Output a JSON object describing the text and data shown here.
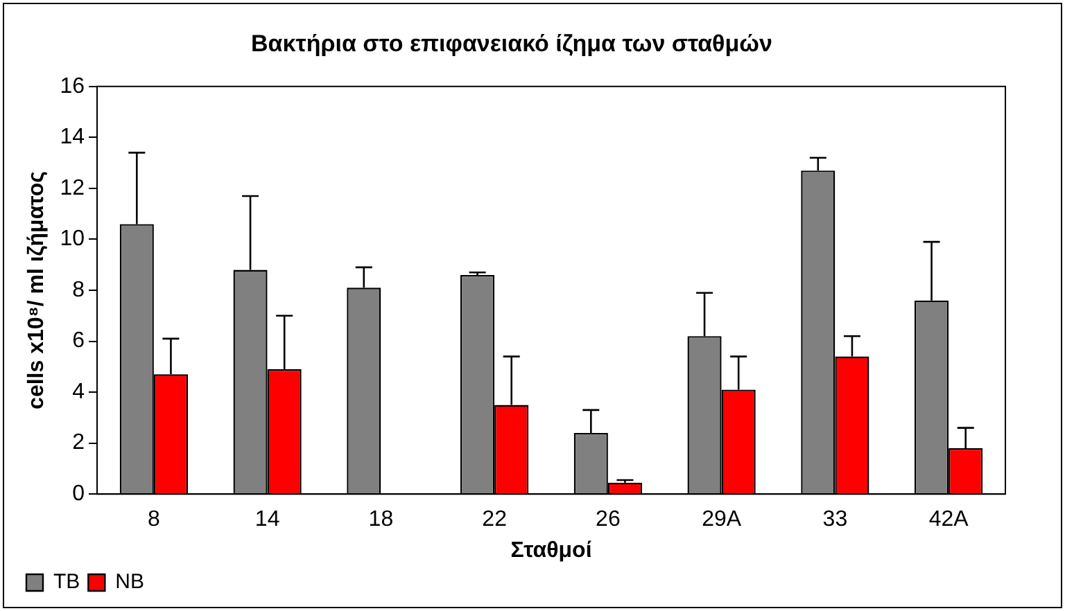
{
  "chart_data": {
    "type": "bar",
    "title": "Βακτήρια στο επιφανειακό ίζημα των σταθμών",
    "xlabel": "Σταθμοί",
    "ylabel": "cells x10⁸/ ml ιζήματος",
    "categories": [
      "8",
      "14",
      "18",
      "22",
      "26",
      "29A",
      "33",
      "42A"
    ],
    "series": [
      {
        "name": "TB",
        "color": "#808080",
        "values": [
          10.6,
          8.8,
          8.1,
          8.6,
          2.4,
          6.2,
          12.7,
          7.6
        ],
        "errors": [
          [
            10.6,
            13.4
          ],
          [
            8.8,
            11.7
          ],
          [
            8.1,
            8.9
          ],
          [
            8.6,
            8.7
          ],
          [
            2.4,
            3.3
          ],
          [
            6.2,
            7.9
          ],
          [
            12.7,
            13.2
          ],
          [
            7.6,
            9.9
          ]
        ]
      },
      {
        "name": "NB",
        "color": "#ff0000",
        "values": [
          4.7,
          4.9,
          null,
          3.5,
          0.45,
          4.1,
          5.4,
          1.8
        ],
        "errors": [
          [
            4.7,
            6.1
          ],
          [
            4.9,
            7.0
          ],
          null,
          [
            3.5,
            5.4
          ],
          [
            0.45,
            0.55
          ],
          [
            4.1,
            5.4
          ],
          [
            5.4,
            6.2
          ],
          [
            1.8,
            2.6
          ]
        ]
      }
    ],
    "ylim": [
      0,
      16
    ],
    "yticks": [
      0,
      2,
      4,
      6,
      8,
      10,
      12,
      14,
      16
    ],
    "grid": false,
    "legend": "bottom left"
  }
}
